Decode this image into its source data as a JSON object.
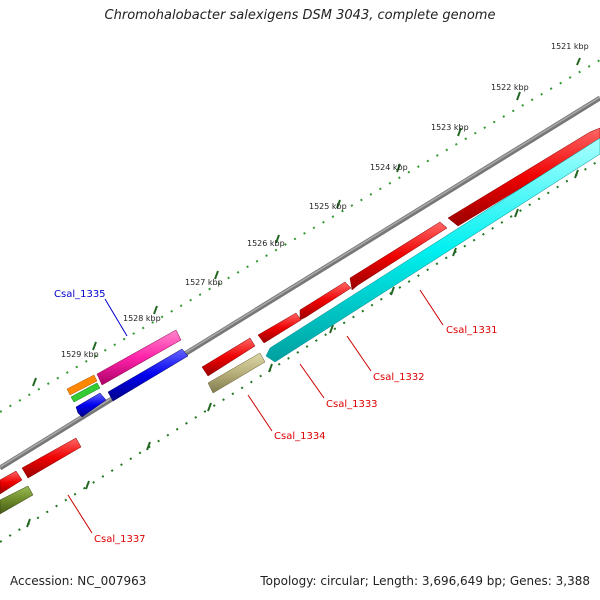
{
  "title": "Chromohalobacter salexigens DSM 3043, complete genome",
  "footer": {
    "accession": "Accession: NC_007963",
    "summary": "Topology: circular; Length: 3,696,649 bp; Genes: 3,388"
  },
  "scale_ticks": [
    "1521 kbp",
    "1522 kbp",
    "1523 kbp",
    "1524 kbp",
    "1525 kbp",
    "1526 kbp",
    "1527 kbp",
    "1528 kbp",
    "1529 kbp"
  ],
  "gene_labels": [
    {
      "text": "Csal_1331",
      "color": "#dd0000"
    },
    {
      "text": "Csal_1332",
      "color": "#dd0000"
    },
    {
      "text": "Csal_1333",
      "color": "#dd0000"
    },
    {
      "text": "Csal_1334",
      "color": "#dd0000"
    },
    {
      "text": "Csal_1335",
      "color": "#0000cc"
    },
    {
      "text": "Csal_1337",
      "color": "#dd0000"
    }
  ],
  "colors": {
    "backbone": "#7a7a7a",
    "red": "#ee0000",
    "cyan": "#00f0f0",
    "blue": "#0000ee",
    "magenta": "#ff22aa",
    "khaki": "#b8b07a",
    "olive": "#6e8a2a",
    "orange": "#ff8800",
    "green": "#33cc33",
    "dots_outer": "#339933",
    "dots_inner": "#227722"
  }
}
